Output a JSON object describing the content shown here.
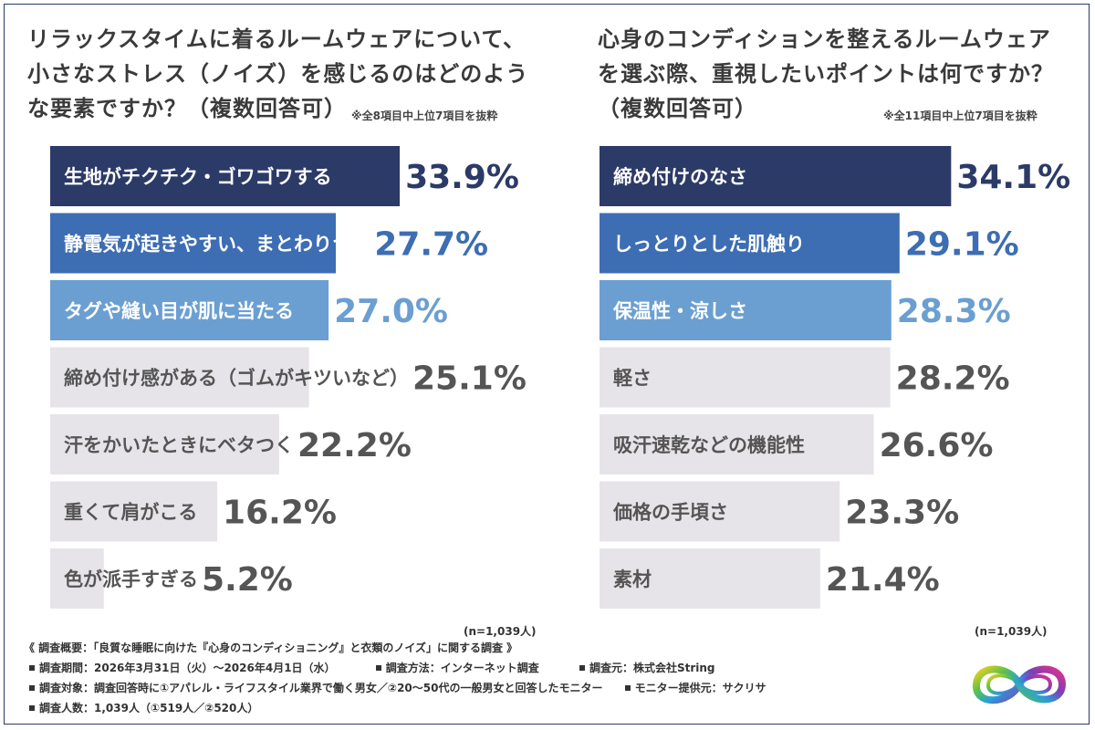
{
  "left": {
    "title_lines": [
      "リラックスタイムに着るルームウェアについて、",
      "小さなストレス（ノイズ）を感じるのはどのよう",
      "な要素ですか？（複数回答可）"
    ],
    "note": "※全8項目中上位7項目を抜粋",
    "n": "(n=1,039人)"
  },
  "right": {
    "title_lines": [
      "心身のコンディションを整えるルームウェア",
      "を選ぶ際、重視したいポイントは何ですか？",
      "（複数回答可）"
    ],
    "note": "※全11項目中上位7項目を抜粋",
    "n": "(n=1,039人)"
  },
  "footer": {
    "overview": "《 調査概要：「良質な睡眠に向けた『心身のコンディショニング』と衣類のノイズ」に関する調査 》",
    "period": "調査期間：2026年3月31日（火）～2026年4月1日（水）",
    "method": "調査方法：インターネット調査",
    "source": "調査元：株式会社String",
    "target": "調査対象：調査回答時に①アパレル・ライフスタイル業界で働く男女／②20～50代の一般男女と回答したモニター",
    "provider": "モニター提供元：サクリサ",
    "count": "調査人数：1,039人（①519人／②520人）"
  },
  "logo": {
    "icon": "infinity-rainbow-logo-icon"
  },
  "colors": {
    "dark_blue": "#2b3a67",
    "mid_blue": "#3d6db3",
    "light_blue": "#6b9fd1",
    "gray_bar": "#e6e4e8",
    "gray_text": "#555555"
  },
  "chart_data": [
    {
      "type": "bar",
      "orientation": "horizontal",
      "categories": [
        "生地がチクチク・ゴワゴワする",
        "静電気が起きやすい、まとわりつく",
        "タグや縫い目が肌に当たる",
        "締め付け感がある（ゴムがキツいなど）",
        "汗をかいたときにベタつく",
        "重くて肩がこる",
        "色が派手すぎる"
      ],
      "values": [
        33.9,
        27.7,
        27.0,
        25.1,
        22.2,
        16.2,
        5.2
      ],
      "labels": [
        "33.9%",
        "27.7%",
        "27.0%",
        "25.1%",
        "22.2%",
        "16.2%",
        "5.2%"
      ],
      "highlight_colors": [
        "#2b3a67",
        "#3d6db3",
        "#6b9fd1",
        "#e6e4e8",
        "#e6e4e8",
        "#e6e4e8",
        "#e6e4e8"
      ],
      "label_colors": [
        "#2b3a67",
        "#3d6db3",
        "#6b9fd1",
        "#555555",
        "#555555",
        "#555555",
        "#555555"
      ]
    },
    {
      "type": "bar",
      "orientation": "horizontal",
      "categories": [
        "締め付けのなさ",
        "しっとりとした肌触り",
        "保温性・涼しさ",
        "軽さ",
        "吸汗速乾などの機能性",
        "価格の手頃さ",
        "素材"
      ],
      "values": [
        34.1,
        29.1,
        28.3,
        28.2,
        26.6,
        23.3,
        21.4
      ],
      "labels": [
        "34.1%",
        "29.1%",
        "28.3%",
        "28.2%",
        "26.6%",
        "23.3%",
        "21.4%"
      ],
      "highlight_colors": [
        "#2b3a67",
        "#3d6db3",
        "#6b9fd1",
        "#e6e4e8",
        "#e6e4e8",
        "#e6e4e8",
        "#e6e4e8"
      ],
      "label_colors": [
        "#2b3a67",
        "#3d6db3",
        "#6b9fd1",
        "#555555",
        "#555555",
        "#555555",
        "#555555"
      ]
    }
  ]
}
